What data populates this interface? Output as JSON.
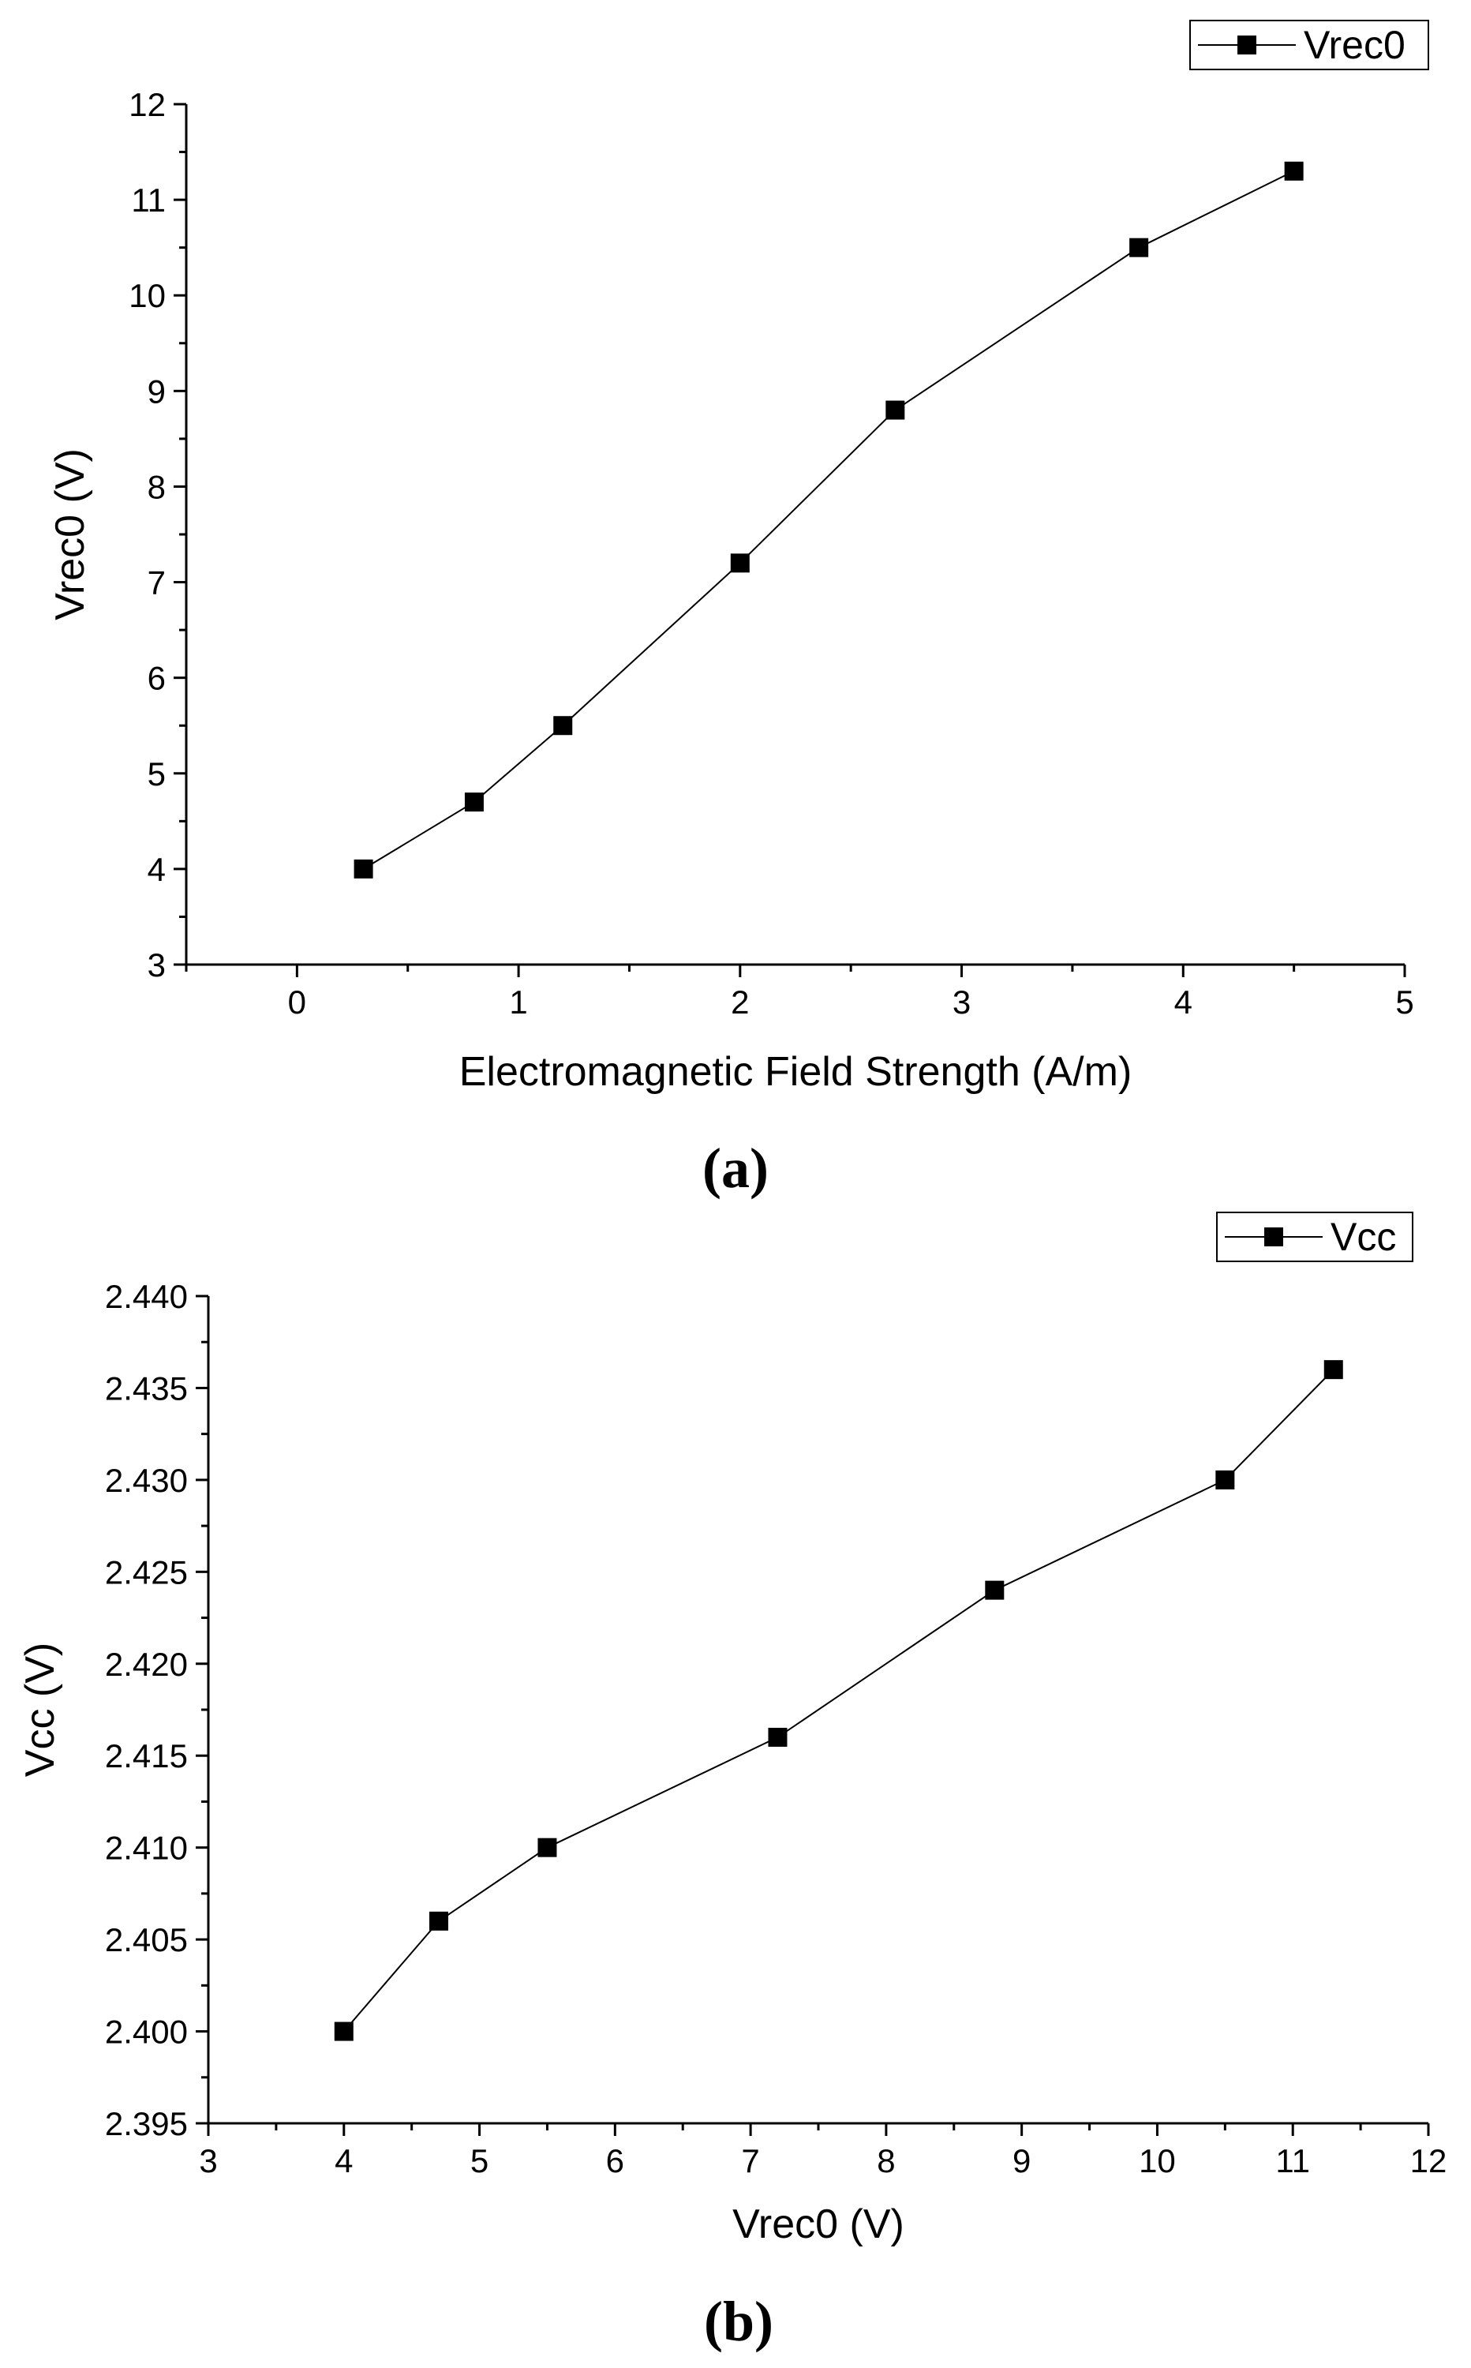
{
  "chart_data": [
    {
      "type": "line",
      "panel_label": "a",
      "xlabel": "Electromagnetic Field Strength (A/m)",
      "ylabel": "Vrec0 (V)",
      "xlim": [
        -0.5,
        5
      ],
      "ylim": [
        3,
        12
      ],
      "x_ticks": [
        "0",
        "1",
        "2",
        "3",
        "4",
        "5"
      ],
      "y_ticks": [
        "3",
        "4",
        "5",
        "6",
        "7",
        "8",
        "9",
        "10",
        "11",
        "12"
      ],
      "legend": "top-right",
      "grid": false,
      "series": [
        {
          "name": "Vrec0",
          "x": [
            0.3,
            0.8,
            1.2,
            2.0,
            2.7,
            3.8,
            4.5
          ],
          "y": [
            4.0,
            4.7,
            5.5,
            7.2,
            8.8,
            10.5,
            11.3
          ]
        }
      ]
    },
    {
      "type": "line",
      "panel_label": "b",
      "xlabel": "Vrec0 (V)",
      "ylabel": "Vcc (V)",
      "xlim": [
        3,
        12
      ],
      "ylim": [
        2.395,
        2.44
      ],
      "x_ticks": [
        "3",
        "4",
        "5",
        "6",
        "7",
        "8",
        "9",
        "10",
        "11",
        "12"
      ],
      "y_ticks": [
        "2.395",
        "2.400",
        "2.405",
        "2.410",
        "2.415",
        "2.420",
        "2.425",
        "2.430",
        "2.435",
        "2.440"
      ],
      "legend": "top-right",
      "grid": false,
      "series": [
        {
          "name": "Vcc",
          "x": [
            4.0,
            4.7,
            5.5,
            7.2,
            8.8,
            10.5,
            11.3
          ],
          "y": [
            2.4,
            2.406,
            2.41,
            2.416,
            2.424,
            2.43,
            2.436
          ]
        }
      ]
    }
  ]
}
